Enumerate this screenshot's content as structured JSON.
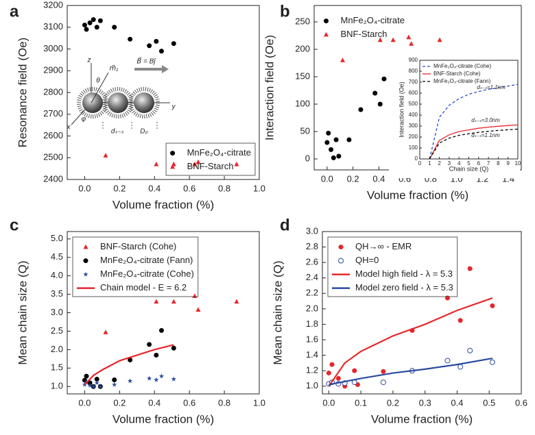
{
  "chart_data": [
    {
      "type": "scatter",
      "label": "a",
      "x_label": "Volume fraction (%)",
      "y_label": "Resonance field (Oe)",
      "xlim": [
        -0.1,
        1.0
      ],
      "ylim": [
        2400,
        3200
      ],
      "xticks": [
        {
          "value": 0,
          "label": "0.0"
        },
        0.2,
        0.4,
        0.6,
        0.8,
        {
          "value": 1,
          "label": "1.0"
        }
      ],
      "yticks": [
        2400,
        2500,
        2600,
        2700,
        2800,
        2900,
        3000,
        3100,
        3200
      ],
      "legend": "lower right",
      "legend_frame": true,
      "series": [
        {
          "name": "MnFe₂O₄-citrate",
          "color": "#000000",
          "marker": "circle",
          "x": [
            0.0,
            0.01,
            0.03,
            0.05,
            0.07,
            0.09,
            0.17,
            0.26,
            0.37,
            0.41,
            0.44,
            0.51
          ],
          "values": [
            3110,
            3090,
            3120,
            3135,
            3100,
            3130,
            3100,
            3045,
            3015,
            3035,
            2990,
            3025
          ]
        },
        {
          "name": "BNF-Starch",
          "color": "#e8262a",
          "marker": "triangle",
          "x": [
            0.12,
            0.41,
            0.51,
            0.63,
            0.65,
            0.87
          ],
          "values": [
            2510,
            2470,
            2470,
            2470,
            2480,
            2470
          ]
        }
      ],
      "annotations": [
        "z",
        "y",
        "x",
        "θ",
        "φ",
        "m⃗₁",
        "B⃗ = Bĵ",
        "dₛ₋ₛ",
        "Dₚ"
      ]
    },
    {
      "type": "scatter",
      "label": "b",
      "x_label": "Volume fraction (%)",
      "y_label": "Interaction field (Oe)",
      "xlim": [
        -0.1,
        1.5
      ],
      "ylim": [
        -20,
        280
      ],
      "xticks": [
        {
          "value": 0,
          "label": "0.0"
        },
        0.2,
        0.4,
        0.6,
        0.8,
        {
          "value": 1,
          "label": "1.0"
        },
        1.2,
        1.4
      ],
      "yticks": [
        0,
        50,
        100,
        150,
        200,
        250
      ],
      "legend": "upper left",
      "legend_frame": false,
      "series": [
        {
          "name": "MnFe₂O₄-citrate",
          "color": "#000000",
          "marker": "circle",
          "x": [
            0.0,
            0.01,
            0.03,
            0.05,
            0.07,
            0.09,
            0.17,
            0.26,
            0.37,
            0.41,
            0.44,
            0.51
          ],
          "values": [
            30,
            47,
            17,
            2,
            35,
            5,
            35,
            90,
            120,
            100,
            146,
            112
          ]
        },
        {
          "name": "BNF-Starch",
          "color": "#e8262a",
          "marker": "triangle",
          "x": [
            0.12,
            0.41,
            0.51,
            0.63,
            0.65,
            0.87
          ],
          "values": [
            180,
            217,
            217,
            222,
            210,
            217
          ]
        }
      ]
    },
    {
      "type": "scatter",
      "label": "c",
      "x_label": "Volume fraction (%)",
      "y_label": "Mean chain size (Q)",
      "xlim": [
        -0.1,
        1.0
      ],
      "ylim": [
        0.8,
        5.2
      ],
      "xticks": [
        {
          "value": 0,
          "label": "0.0"
        },
        0.2,
        0.4,
        0.6,
        0.8,
        {
          "value": 1,
          "label": "1.0"
        }
      ],
      "yticks": [
        {
          "value": 1,
          "label": "1.0"
        },
        1.5,
        {
          "value": 2,
          "label": "2.0"
        },
        2.5,
        {
          "value": 3,
          "label": "3.0"
        },
        3.5,
        {
          "value": 4,
          "label": "4.0"
        },
        4.5,
        {
          "value": 5,
          "label": "5.0"
        }
      ],
      "legend": "upper left",
      "legend_frame": true,
      "series": [
        {
          "name": "BNF-Starch (Cohe)",
          "color": "#e8262a",
          "marker": "triangle",
          "x": [
            0.12,
            0.41,
            0.51,
            0.63,
            0.65,
            0.87
          ],
          "values": [
            2.47,
            3.3,
            3.3,
            3.45,
            3.08,
            3.3
          ]
        },
        {
          "name": "MnFe₂O₄-citrate (Fann)",
          "color": "#000000",
          "marker": "circle",
          "x": [
            0.0,
            0.01,
            0.03,
            0.05,
            0.07,
            0.09,
            0.17,
            0.26,
            0.37,
            0.41,
            0.44,
            0.51
          ],
          "values": [
            1.17,
            1.28,
            1.1,
            1.0,
            1.2,
            1.0,
            1.18,
            1.72,
            2.14,
            1.85,
            2.52,
            2.04
          ]
        },
        {
          "name": "MnFe₂O₄-citrate (Cohe)",
          "color": "#2a4aa0",
          "marker": "star",
          "x": [
            0.0,
            0.01,
            0.03,
            0.05,
            0.07,
            0.09,
            0.17,
            0.26,
            0.37,
            0.41,
            0.44,
            0.51
          ],
          "values": [
            1.05,
            1.12,
            1.03,
            1.0,
            1.1,
            1.0,
            1.05,
            1.15,
            1.22,
            1.18,
            1.28,
            1.2
          ]
        },
        {
          "name": "Chain model - E = 6.2",
          "color": "#e8262a",
          "line": "solid",
          "x": [
            0.0,
            0.05,
            0.1,
            0.2,
            0.3,
            0.4,
            0.51
          ],
          "values": [
            1.05,
            1.3,
            1.45,
            1.7,
            1.85,
            2.0,
            2.13
          ]
        }
      ]
    },
    {
      "type": "scatter",
      "label": "d",
      "x_label": "Volume fraction (%)",
      "y_label": "Mean chain size (Q)",
      "xlim": [
        -0.02,
        0.6
      ],
      "ylim": [
        0.9,
        3.0
      ],
      "xticks": [
        {
          "value": 0,
          "label": "0.0"
        },
        0.1,
        0.2,
        0.3,
        0.4,
        0.5,
        0.6
      ],
      "yticks": [
        {
          "value": 1,
          "label": "1.0"
        },
        1.2,
        1.4,
        1.6,
        1.8,
        {
          "value": 2,
          "label": "2.0"
        },
        2.2,
        2.4,
        2.6,
        2.8,
        {
          "value": 3,
          "label": "3.0"
        }
      ],
      "legend": "upper left",
      "legend_frame": true,
      "series": [
        {
          "name": "QH→∞ - EMR",
          "color": "#e8262a",
          "marker": "circle",
          "x": [
            0.0,
            0.01,
            0.03,
            0.05,
            0.08,
            0.09,
            0.17,
            0.26,
            0.37,
            0.41,
            0.44,
            0.51
          ],
          "values": [
            1.17,
            1.28,
            1.1,
            1.0,
            1.2,
            1.02,
            1.19,
            1.72,
            2.14,
            1.85,
            2.52,
            2.04
          ]
        },
        {
          "name": "QH=0",
          "color": "#2a4aa0",
          "marker": "open-circle",
          "x": [
            0.0,
            0.01,
            0.03,
            0.05,
            0.08,
            0.17,
            0.26,
            0.37,
            0.41,
            0.44,
            0.51
          ],
          "values": [
            1.03,
            1.05,
            1.03,
            1.04,
            1.05,
            1.05,
            1.2,
            1.33,
            1.25,
            1.46,
            1.31
          ]
        },
        {
          "name": "Model high field - λ = 5.3",
          "color": "#e8262a",
          "line": "solid",
          "x": [
            0.0,
            0.05,
            0.1,
            0.2,
            0.3,
            0.4,
            0.51
          ],
          "values": [
            1.0,
            1.3,
            1.45,
            1.65,
            1.8,
            1.98,
            2.14
          ]
        },
        {
          "name": "Model zero field - λ = 5.3",
          "color": "#2a4aa0",
          "line": "solid",
          "x": [
            0.0,
            0.1,
            0.2,
            0.3,
            0.4,
            0.51
          ],
          "values": [
            1.02,
            1.1,
            1.17,
            1.22,
            1.28,
            1.36
          ]
        }
      ]
    },
    {
      "type": "line",
      "x_label": "Chain size (Q)",
      "y_label": "Interaction field (Oe)",
      "xlim": [
        0,
        10
      ],
      "ylim": [
        0,
        900
      ],
      "xticks": [
        0,
        1,
        2,
        3,
        4,
        5,
        6,
        7,
        8,
        9,
        10
      ],
      "yticks": [
        0,
        100,
        200,
        300,
        400,
        500,
        600,
        700,
        800,
        900
      ],
      "legend": "upper left",
      "legend_frame": false,
      "series": [
        {
          "name": "MnFe₂O₄-citrate (Cohe)",
          "color": "#2a4ad0",
          "line": "dashed",
          "x": [
            1,
            2,
            3,
            4,
            5,
            6,
            7,
            8,
            9,
            10
          ],
          "values": [
            0,
            380,
            490,
            550,
            590,
            615,
            635,
            650,
            665,
            680
          ]
        },
        {
          "name": "BNF-Starch (Cohe)",
          "color": "#e8262a",
          "line": "solid",
          "x": [
            1,
            2,
            3,
            4,
            5,
            6,
            7,
            8,
            9,
            10
          ],
          "values": [
            0,
            170,
            220,
            250,
            265,
            280,
            290,
            298,
            305,
            310
          ]
        },
        {
          "name": "MnFe₂O₄-citrate (Fann)",
          "color": "#000000",
          "line": "dashed",
          "x": [
            1,
            2,
            3,
            4,
            5,
            6,
            7,
            8,
            9,
            10
          ],
          "values": [
            0,
            145,
            190,
            215,
            230,
            243,
            252,
            260,
            266,
            272
          ]
        }
      ],
      "annotations": [
        "dₛ₋ₛ=1.1nm",
        "dₛ₋ₛ=3.0nm",
        "dₛ₋ₛ=1.1nm"
      ]
    }
  ]
}
